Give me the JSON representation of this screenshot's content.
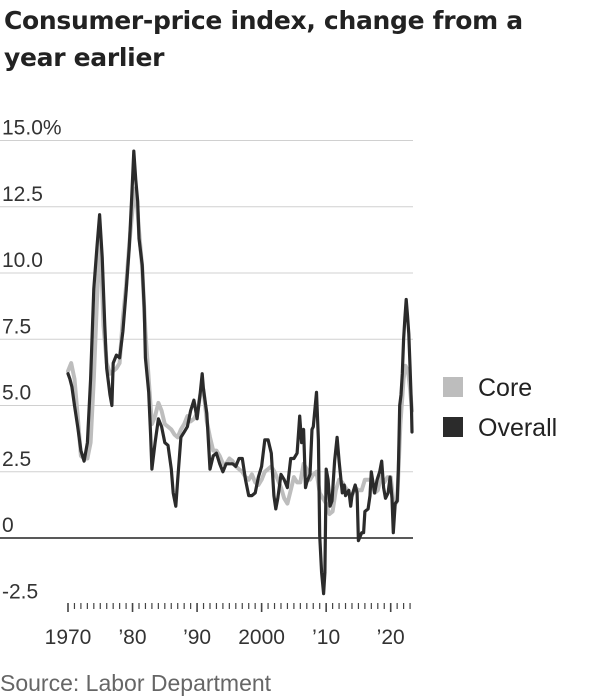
{
  "chart_data": {
    "type": "line",
    "title": "Consumer-price index, change from a year earlier",
    "source": "Source: Labor Department",
    "xlabel": "",
    "ylabel": "",
    "xlim": [
      1970.0,
      2023.3
    ],
    "ylim": [
      -2.5,
      15.0
    ],
    "y_ticks": [
      {
        "value": 15.0,
        "label": "15.0%"
      },
      {
        "value": 12.5,
        "label": "12.5"
      },
      {
        "value": 10.0,
        "label": "10.0"
      },
      {
        "value": 7.5,
        "label": "7.5"
      },
      {
        "value": 5.0,
        "label": "5.0"
      },
      {
        "value": 2.5,
        "label": "2.5"
      },
      {
        "value": 0,
        "label": "0"
      },
      {
        "value": -2.5,
        "label": "-2.5"
      }
    ],
    "x_ticks": [
      {
        "value": 1970,
        "label": "1970"
      },
      {
        "value": 1980,
        "label": "’80"
      },
      {
        "value": 1990,
        "label": "’90"
      },
      {
        "value": 2000,
        "label": "2000"
      },
      {
        "value": 2010,
        "label": "’10"
      },
      {
        "value": 2020,
        "label": "’20"
      }
    ],
    "grid": true,
    "legend_position": "right",
    "series": [
      {
        "name": "Core",
        "color": "#bdbdbd",
        "points": [
          [
            1970.0,
            6.3
          ],
          [
            1970.5,
            6.6
          ],
          [
            1971.0,
            6.0
          ],
          [
            1971.5,
            4.6
          ],
          [
            1972.0,
            3.1
          ],
          [
            1972.5,
            3.0
          ],
          [
            1973.0,
            3.0
          ],
          [
            1973.5,
            3.6
          ],
          [
            1974.0,
            6.0
          ],
          [
            1974.5,
            9.0
          ],
          [
            1975.0,
            11.4
          ],
          [
            1975.5,
            8.0
          ],
          [
            1976.0,
            6.6
          ],
          [
            1976.5,
            6.2
          ],
          [
            1977.0,
            6.3
          ],
          [
            1977.5,
            6.4
          ],
          [
            1978.0,
            6.6
          ],
          [
            1978.5,
            8.3
          ],
          [
            1979.0,
            9.5
          ],
          [
            1979.5,
            11.1
          ],
          [
            1980.0,
            12.4
          ],
          [
            1980.5,
            13.2
          ],
          [
            1981.0,
            11.6
          ],
          [
            1981.5,
            10.2
          ],
          [
            1982.0,
            7.8
          ],
          [
            1982.5,
            6.0
          ],
          [
            1983.0,
            4.3
          ],
          [
            1983.5,
            4.6
          ],
          [
            1984.0,
            5.1
          ],
          [
            1984.5,
            4.8
          ],
          [
            1985.0,
            4.3
          ],
          [
            1985.5,
            4.2
          ],
          [
            1986.0,
            4.1
          ],
          [
            1986.5,
            3.9
          ],
          [
            1987.0,
            3.8
          ],
          [
            1987.5,
            4.1
          ],
          [
            1988.0,
            4.3
          ],
          [
            1988.5,
            4.6
          ],
          [
            1989.0,
            4.4
          ],
          [
            1989.5,
            4.5
          ],
          [
            1990.0,
            4.7
          ],
          [
            1990.5,
            5.4
          ],
          [
            1991.0,
            5.6
          ],
          [
            1991.5,
            4.4
          ],
          [
            1992.0,
            3.8
          ],
          [
            1992.5,
            3.3
          ],
          [
            1993.0,
            3.3
          ],
          [
            1993.5,
            3.1
          ],
          [
            1994.0,
            2.8
          ],
          [
            1994.5,
            2.8
          ],
          [
            1995.0,
            3.0
          ],
          [
            1995.5,
            2.9
          ],
          [
            1996.0,
            2.7
          ],
          [
            1996.5,
            2.6
          ],
          [
            1997.0,
            2.5
          ],
          [
            1997.5,
            2.3
          ],
          [
            1998.0,
            2.2
          ],
          [
            1998.5,
            2.4
          ],
          [
            1999.0,
            2.1
          ],
          [
            1999.5,
            2.0
          ],
          [
            2000.0,
            2.2
          ],
          [
            2000.5,
            2.5
          ],
          [
            2001.0,
            2.6
          ],
          [
            2001.5,
            2.7
          ],
          [
            2002.0,
            2.5
          ],
          [
            2002.5,
            2.2
          ],
          [
            2003.0,
            1.9
          ],
          [
            2003.5,
            1.5
          ],
          [
            2004.0,
            1.3
          ],
          [
            2004.5,
            1.8
          ],
          [
            2005.0,
            2.3
          ],
          [
            2005.5,
            2.1
          ],
          [
            2006.0,
            2.1
          ],
          [
            2006.5,
            2.8
          ],
          [
            2007.0,
            2.6
          ],
          [
            2007.5,
            2.2
          ],
          [
            2008.0,
            2.4
          ],
          [
            2008.5,
            2.5
          ],
          [
            2009.0,
            1.7
          ],
          [
            2009.5,
            1.5
          ],
          [
            2010.0,
            1.3
          ],
          [
            2010.5,
            0.9
          ],
          [
            2011.0,
            1.0
          ],
          [
            2011.5,
            1.8
          ],
          [
            2012.0,
            2.2
          ],
          [
            2012.5,
            2.1
          ],
          [
            2013.0,
            1.9
          ],
          [
            2013.5,
            1.7
          ],
          [
            2014.0,
            1.6
          ],
          [
            2014.5,
            1.9
          ],
          [
            2015.0,
            1.8
          ],
          [
            2015.5,
            1.8
          ],
          [
            2016.0,
            2.2
          ],
          [
            2016.5,
            2.2
          ],
          [
            2017.0,
            2.2
          ],
          [
            2017.5,
            1.7
          ],
          [
            2018.0,
            1.8
          ],
          [
            2018.5,
            2.3
          ],
          [
            2019.0,
            2.1
          ],
          [
            2019.5,
            2.3
          ],
          [
            2020.0,
            2.3
          ],
          [
            2020.5,
            1.2
          ],
          [
            2021.0,
            1.4
          ],
          [
            2021.5,
            4.3
          ],
          [
            2022.0,
            6.0
          ],
          [
            2022.3,
            6.5
          ],
          [
            2022.7,
            6.3
          ],
          [
            2023.0,
            5.6
          ],
          [
            2023.3,
            4.8
          ]
        ]
      },
      {
        "name": "Overall",
        "color": "#2b2b2b",
        "points": [
          [
            1970.0,
            6.2
          ],
          [
            1970.3,
            6.0
          ],
          [
            1970.6,
            5.7
          ],
          [
            1971.0,
            5.0
          ],
          [
            1971.5,
            4.2
          ],
          [
            1972.0,
            3.3
          ],
          [
            1972.5,
            2.9
          ],
          [
            1973.0,
            3.6
          ],
          [
            1973.5,
            6.0
          ],
          [
            1974.0,
            9.4
          ],
          [
            1974.5,
            11.0
          ],
          [
            1974.9,
            12.2
          ],
          [
            1975.3,
            10.6
          ],
          [
            1975.7,
            8.0
          ],
          [
            1976.0,
            6.4
          ],
          [
            1976.5,
            5.4
          ],
          [
            1976.8,
            5.0
          ],
          [
            1977.0,
            6.6
          ],
          [
            1977.5,
            6.9
          ],
          [
            1978.0,
            6.8
          ],
          [
            1978.5,
            7.8
          ],
          [
            1979.0,
            9.3
          ],
          [
            1979.5,
            11.0
          ],
          [
            1979.9,
            13.0
          ],
          [
            1980.2,
            14.6
          ],
          [
            1980.5,
            13.5
          ],
          [
            1980.8,
            12.7
          ],
          [
            1981.0,
            11.3
          ],
          [
            1981.5,
            10.3
          ],
          [
            1981.8,
            8.7
          ],
          [
            1982.0,
            6.8
          ],
          [
            1982.5,
            5.5
          ],
          [
            1982.8,
            3.9
          ],
          [
            1983.0,
            2.6
          ],
          [
            1983.5,
            3.6
          ],
          [
            1984.0,
            4.5
          ],
          [
            1984.5,
            4.2
          ],
          [
            1985.0,
            3.6
          ],
          [
            1985.5,
            3.5
          ],
          [
            1986.0,
            2.6
          ],
          [
            1986.3,
            1.7
          ],
          [
            1986.7,
            1.2
          ],
          [
            1987.0,
            2.2
          ],
          [
            1987.5,
            3.8
          ],
          [
            1988.0,
            4.0
          ],
          [
            1988.5,
            4.2
          ],
          [
            1989.0,
            4.8
          ],
          [
            1989.5,
            5.2
          ],
          [
            1990.0,
            4.5
          ],
          [
            1990.5,
            5.5
          ],
          [
            1990.8,
            6.2
          ],
          [
            1991.0,
            5.6
          ],
          [
            1991.5,
            4.7
          ],
          [
            1992.0,
            2.6
          ],
          [
            1992.5,
            3.1
          ],
          [
            1993.0,
            3.2
          ],
          [
            1993.5,
            2.8
          ],
          [
            1994.0,
            2.5
          ],
          [
            1994.5,
            2.8
          ],
          [
            1995.0,
            2.8
          ],
          [
            1995.5,
            2.8
          ],
          [
            1996.0,
            2.7
          ],
          [
            1996.5,
            3.0
          ],
          [
            1997.0,
            3.0
          ],
          [
            1997.5,
            2.2
          ],
          [
            1998.0,
            1.6
          ],
          [
            1998.5,
            1.6
          ],
          [
            1999.0,
            1.7
          ],
          [
            1999.5,
            2.3
          ],
          [
            2000.0,
            2.7
          ],
          [
            2000.5,
            3.7
          ],
          [
            2001.0,
            3.7
          ],
          [
            2001.5,
            3.2
          ],
          [
            2001.9,
            1.6
          ],
          [
            2002.2,
            1.1
          ],
          [
            2002.5,
            1.5
          ],
          [
            2003.0,
            2.4
          ],
          [
            2003.5,
            2.2
          ],
          [
            2004.0,
            1.9
          ],
          [
            2004.5,
            3.0
          ],
          [
            2005.0,
            3.0
          ],
          [
            2005.5,
            3.2
          ],
          [
            2005.9,
            4.6
          ],
          [
            2006.2,
            3.6
          ],
          [
            2006.5,
            4.1
          ],
          [
            2006.8,
            1.9
          ],
          [
            2007.0,
            2.1
          ],
          [
            2007.5,
            2.4
          ],
          [
            2007.8,
            4.1
          ],
          [
            2008.0,
            4.2
          ],
          [
            2008.5,
            5.5
          ],
          [
            2008.8,
            3.7
          ],
          [
            2009.0,
            0.1
          ],
          [
            2009.3,
            -1.3
          ],
          [
            2009.6,
            -2.1
          ],
          [
            2009.8,
            -1.3
          ],
          [
            2010.0,
            2.6
          ],
          [
            2010.3,
            2.2
          ],
          [
            2010.6,
            1.2
          ],
          [
            2010.9,
            1.4
          ],
          [
            2011.3,
            2.9
          ],
          [
            2011.7,
            3.8
          ],
          [
            2012.0,
            2.9
          ],
          [
            2012.5,
            1.7
          ],
          [
            2012.8,
            2.0
          ],
          [
            2013.0,
            1.6
          ],
          [
            2013.5,
            1.8
          ],
          [
            2013.8,
            1.2
          ],
          [
            2014.0,
            1.6
          ],
          [
            2014.5,
            2.0
          ],
          [
            2014.8,
            1.7
          ],
          [
            2015.0,
            -0.1
          ],
          [
            2015.5,
            0.2
          ],
          [
            2015.8,
            0.2
          ],
          [
            2016.0,
            1.0
          ],
          [
            2016.5,
            1.1
          ],
          [
            2016.8,
            1.6
          ],
          [
            2017.0,
            2.5
          ],
          [
            2017.5,
            1.7
          ],
          [
            2017.9,
            2.2
          ],
          [
            2018.3,
            2.5
          ],
          [
            2018.6,
            2.9
          ],
          [
            2018.9,
            1.9
          ],
          [
            2019.2,
            1.5
          ],
          [
            2019.6,
            1.7
          ],
          [
            2019.9,
            2.3
          ],
          [
            2020.2,
            1.5
          ],
          [
            2020.4,
            0.2
          ],
          [
            2020.7,
            1.3
          ],
          [
            2021.0,
            1.4
          ],
          [
            2021.2,
            2.6
          ],
          [
            2021.4,
            5.0
          ],
          [
            2021.6,
            5.4
          ],
          [
            2021.8,
            6.2
          ],
          [
            2022.0,
            7.5
          ],
          [
            2022.2,
            8.3
          ],
          [
            2022.4,
            9.0
          ],
          [
            2022.6,
            8.4
          ],
          [
            2022.8,
            7.7
          ],
          [
            2023.0,
            6.4
          ],
          [
            2023.2,
            5.0
          ],
          [
            2023.3,
            4.0
          ]
        ]
      }
    ]
  }
}
